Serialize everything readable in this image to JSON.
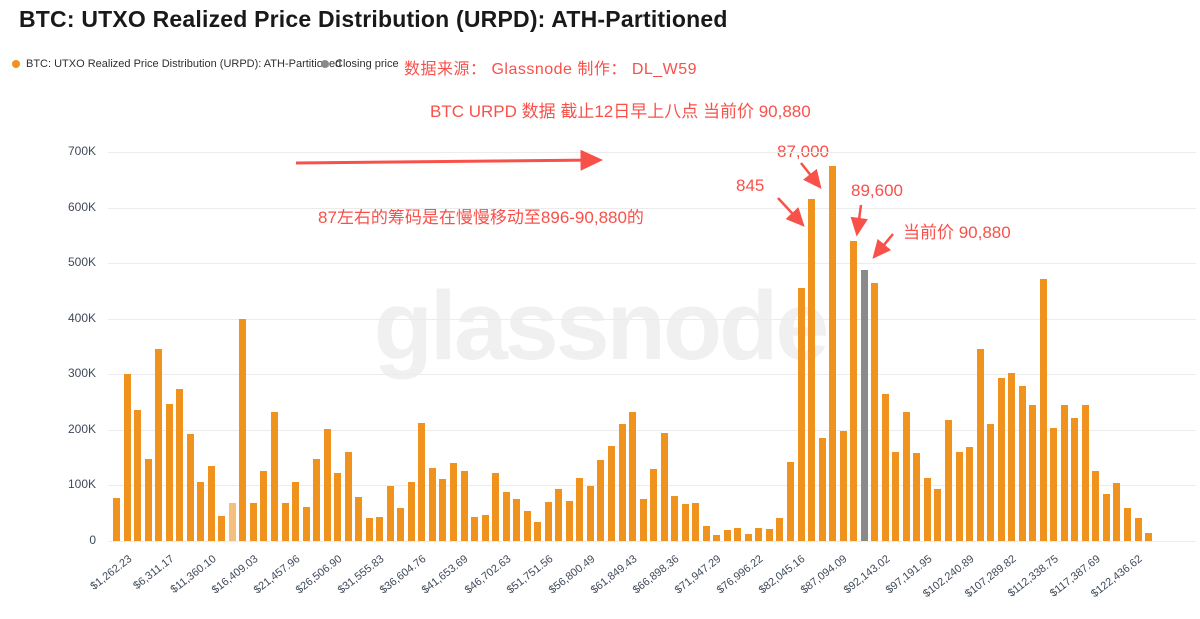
{
  "title": "BTC: UTXO Realized Price Distribution (URPD): ATH-Partitioned",
  "legend": {
    "items": [
      {
        "label": "BTC: UTXO Realized Price Distribution (URPD): ATH-Partitioned",
        "color": "#f0931e"
      },
      {
        "label": "Closing price",
        "color": "#8a8a8a"
      }
    ]
  },
  "annotations": {
    "source_line": "数据来源： Glassnode 制作： DL_W59",
    "data_note": "BTC URPD 数据 截止12日早上八点 当前价 90,880",
    "movement_note": "87左右的筹码是在慢慢移动至896-90,880的",
    "callout_845": "845",
    "callout_87000": "87,000",
    "callout_89600": "89,600",
    "callout_current": "当前价 90,880"
  },
  "watermark": "glassnode",
  "colors": {
    "bar_orange": "#f0931e",
    "bar_light_orange": "#f5c07c",
    "bar_closing_gray": "#8a8a8a",
    "annotation_red": "#f8514a",
    "axis_label": "#3f4a5a",
    "gridline": "#ececec"
  },
  "chart_data": {
    "type": "bar",
    "title": "BTC: UTXO Realized Price Distribution (URPD): ATH-Partitioned",
    "xlabel": "",
    "ylabel": "",
    "ylim": [
      0,
      700000
    ],
    "grid": "horizontal",
    "legend_position": "top-left",
    "ytick_labels": [
      "700K",
      "600K",
      "500K",
      "400K",
      "300K",
      "200K",
      "100K",
      "0"
    ],
    "x_tick_labels": [
      "$1,262.23",
      "$6,311.17",
      "$11,360.10",
      "$16,409.03",
      "$21,457.96",
      "$26,506.90",
      "$31,555.83",
      "$36,604.76",
      "$41,653.69",
      "$46,702.63",
      "$51,751.56",
      "$56,800.49",
      "$61,849.43",
      "$66,898.36",
      "$71,947.29",
      "$76,996.22",
      "$82,045.16",
      "$87,094.09",
      "$92,143.02",
      "$97,191.95",
      "$102,240.89",
      "$107,289.82",
      "$112,338.75",
      "$117,387.69",
      "$122,436.62"
    ],
    "x_tick_every_n_bars": 4,
    "series": [
      {
        "name": "UTXO Realized Price Distribution",
        "values": [
          77000,
          300000,
          236000,
          148000,
          346000,
          247000,
          274000,
          192000,
          107000,
          135000,
          45000,
          68000,
          400000,
          68000,
          126000,
          232000,
          68000,
          106000,
          61000,
          148000,
          202000,
          123000,
          160000,
          79000,
          41000,
          43000,
          99000,
          59000,
          106000,
          213000,
          132000,
          112000,
          141000,
          126000,
          43000,
          47000,
          123000,
          89000,
          76000,
          54000,
          35000,
          70000,
          94000,
          72000,
          113000,
          99000,
          146000,
          171000,
          211000,
          232000,
          76000,
          130000,
          194000,
          81000,
          67000,
          68000,
          27000,
          11000,
          20000,
          24000,
          13000,
          23000,
          21000,
          42000,
          143000,
          456000,
          615000,
          185000,
          674000,
          198000,
          540000,
          488000,
          465000,
          264000,
          160000,
          233000,
          158000,
          113000,
          94000,
          218000,
          161000,
          169000,
          346000,
          211000,
          294000,
          302000,
          279000,
          245000,
          472000,
          203000,
          245000,
          221000,
          245000,
          126000,
          84000,
          104000,
          59000,
          41000,
          14000,
          0
        ]
      }
    ],
    "closing_price_bar": {
      "index_1based": 72,
      "value": 488000,
      "label": "当前价 90,880"
    },
    "light_bar_index_1based": 12,
    "callouts": [
      {
        "text": "845",
        "points_to_bar_1based": 67
      },
      {
        "text": "87,000",
        "points_to_bar_1based": 69
      },
      {
        "text": "89,600",
        "points_to_bar_1based": 71
      },
      {
        "text": "当前价 90,880",
        "points_to_bar_1based": 72
      }
    ]
  }
}
